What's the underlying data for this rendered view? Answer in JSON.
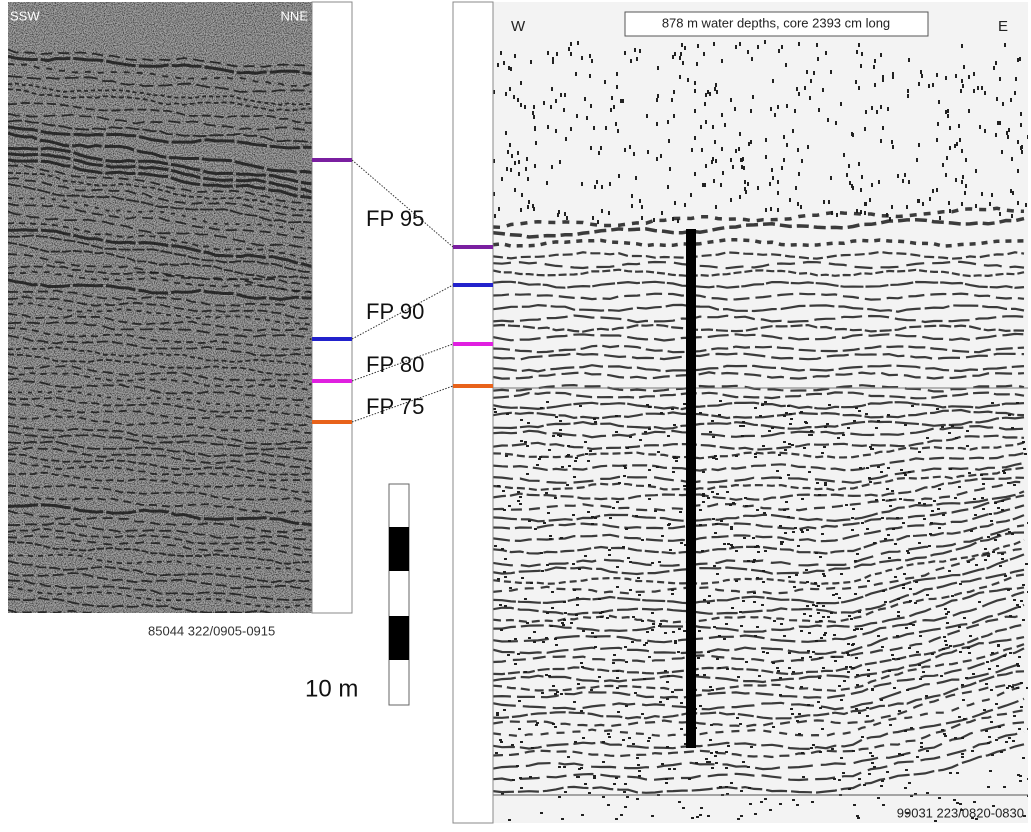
{
  "left_profile": {
    "direction_left": "SSW",
    "direction_right": "NNE",
    "caption": "85044 322/0905-0915"
  },
  "right_profile": {
    "direction_left": "W",
    "direction_right": "E",
    "note": "878 m water depths, core 2393 cm long",
    "caption": "99031 223/0820-0830"
  },
  "horizons": [
    {
      "label": "FP 95",
      "color": "#7a1fa0"
    },
    {
      "label": "FP 90",
      "color": "#2222cc"
    },
    {
      "label": "FP 80",
      "color": "#e020e0"
    },
    {
      "label": "FP 75",
      "color": "#e8621a"
    }
  ],
  "scale_bar": {
    "label": "10 m"
  }
}
